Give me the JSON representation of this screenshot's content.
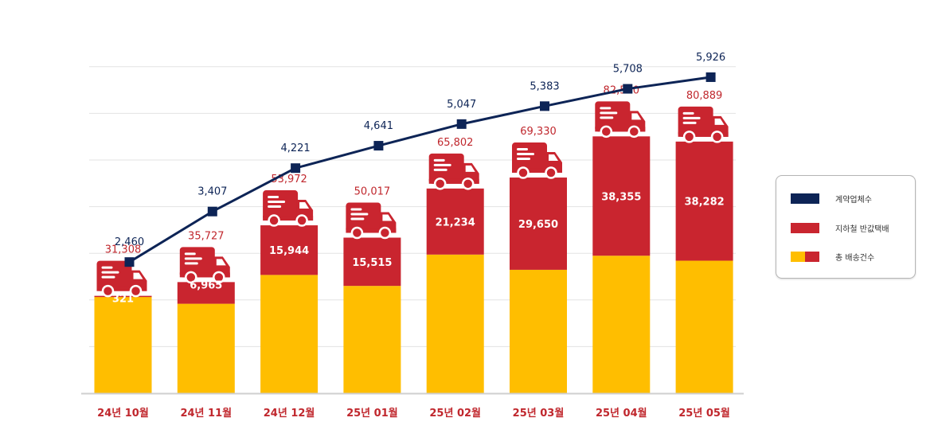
{
  "chart_data": {
    "type": "bar",
    "categories": [
      "24년 10월",
      "24년 11월",
      "24년 12월",
      "25년 01월",
      "25년 02월",
      "25년 03월",
      "25년 04월",
      "25년 05월"
    ],
    "series": [
      {
        "name": "계약업체수",
        "kind": "line",
        "values": [
          2460,
          3407,
          4221,
          4641,
          5047,
          5383,
          5708,
          5926
        ],
        "labels": [
          "2,460",
          "3,407",
          "4,221",
          "4,641",
          "5,047",
          "5,383",
          "5,708",
          "5,926"
        ]
      },
      {
        "name": "지하철 반값택배",
        "kind": "stacked-bar",
        "values": [
          321,
          6965,
          15944,
          15515,
          21234,
          29650,
          38355,
          38282
        ],
        "labels": [
          "321",
          "6,965",
          "15,944",
          "15,515",
          "21,234",
          "29,650",
          "38,355",
          "38,282"
        ]
      },
      {
        "name": "총 배송건수",
        "kind": "bar-total",
        "values": [
          31308,
          35727,
          53972,
          50017,
          65802,
          69330,
          82560,
          80889
        ],
        "labels": [
          "31,308",
          "35,727",
          "53,972",
          "50,017",
          "65,802",
          "69,330",
          "82,560",
          "80,889"
        ]
      }
    ],
    "ylim_bars": [
      0,
      120000
    ],
    "ylim_line": [
      0,
      7000
    ],
    "grid": true,
    "legend_position": "right",
    "colors": {
      "line": "#0d2456",
      "red": "#c9252f",
      "yellow": "#ffbe00",
      "label_red": "#c0272d",
      "label_navy": "#0d2456"
    },
    "icon": "delivery-truck-icon"
  },
  "legend": {
    "items": [
      {
        "label": "계약업체수"
      },
      {
        "label": "지하철 반값택배"
      },
      {
        "label": "총 배송건수"
      }
    ]
  }
}
